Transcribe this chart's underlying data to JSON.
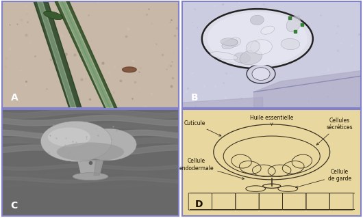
{
  "figure_width": 5.3,
  "figure_height": 3.19,
  "dpi": 100,
  "border_color": "#8080cc",
  "border_linewidth": 1.5,
  "background_color": "#ffffff",
  "panel_positions": {
    "A": [
      0.005,
      0.505,
      0.488,
      0.488
    ],
    "B": [
      0.502,
      0.505,
      0.493,
      0.488
    ],
    "C": [
      0.005,
      0.01,
      0.488,
      0.488
    ],
    "D": [
      0.502,
      0.01,
      0.493,
      0.488
    ]
  },
  "label_fontsize": 10,
  "panel_A_bg": "#c8b8a8",
  "panel_B_bg": "#cccce0",
  "panel_C_bg": "#787878",
  "panel_D_bg": "#e8d8a0",
  "panel_D_labels": {
    "huile_essentielle": "Huile essentielle",
    "cuticule": "Cuticule",
    "cellules_secretrices": "Cellules\nsécrétices",
    "cellule_endodermale": "Cellule\nendodermale",
    "cellule_de_garde": "Cellule\nde garde",
    "fontsize": 5.5
  }
}
